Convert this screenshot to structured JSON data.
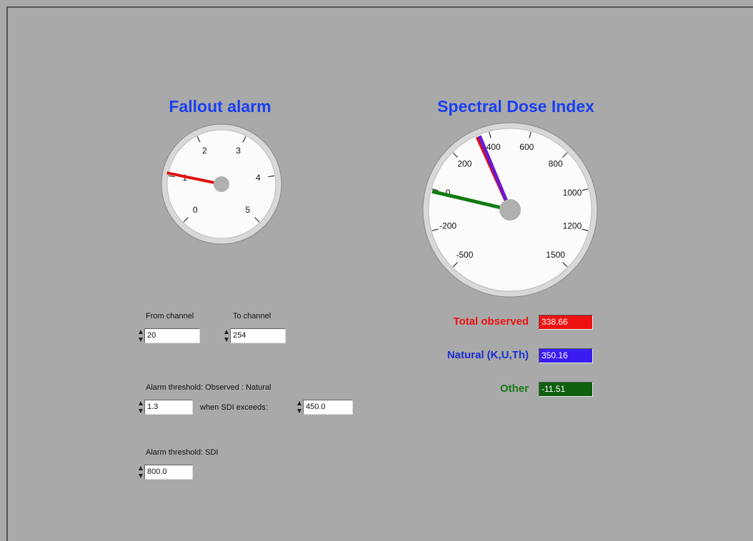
{
  "fallout_alarm": {
    "title": "Fallout alarm",
    "gauge": {
      "ticks": [
        0,
        1,
        2,
        3,
        4,
        5
      ],
      "needle": 1.05,
      "needle_color": "#e01010"
    }
  },
  "spectral_dose_index": {
    "title": "Spectral Dose Index",
    "gauge": {
      "ticks": [
        -500,
        -200,
        0,
        200,
        400,
        600,
        800,
        1000,
        1200,
        1500
      ]
    },
    "readouts": [
      {
        "label": "Total observed",
        "value": 338.66,
        "color": "#ee1111",
        "box_color": "#ee1111",
        "needle_color": "#e01010"
      },
      {
        "label": "Natural (K,U,Th)",
        "value": 350.16,
        "color": "#1a2fd0",
        "box_color": "#3a1cf0",
        "needle_color": "#6a1ad0"
      },
      {
        "label": "Other",
        "value": -11.51,
        "color": "#157a15",
        "box_color": "#106010",
        "needle_color": "#107a10"
      }
    ]
  },
  "controls": {
    "from_channel": {
      "label": "From channel",
      "value": "20"
    },
    "to_channel": {
      "label": "To channel",
      "value": "254"
    },
    "ratio_threshold": {
      "label": "Alarm threshold: Observed : Natural",
      "value": "1.3",
      "condition_label": "when SDI exceeds:",
      "condition_value": "450.0"
    },
    "sdi_threshold": {
      "label": "Alarm threshold: SDI",
      "value": "800.0"
    }
  }
}
